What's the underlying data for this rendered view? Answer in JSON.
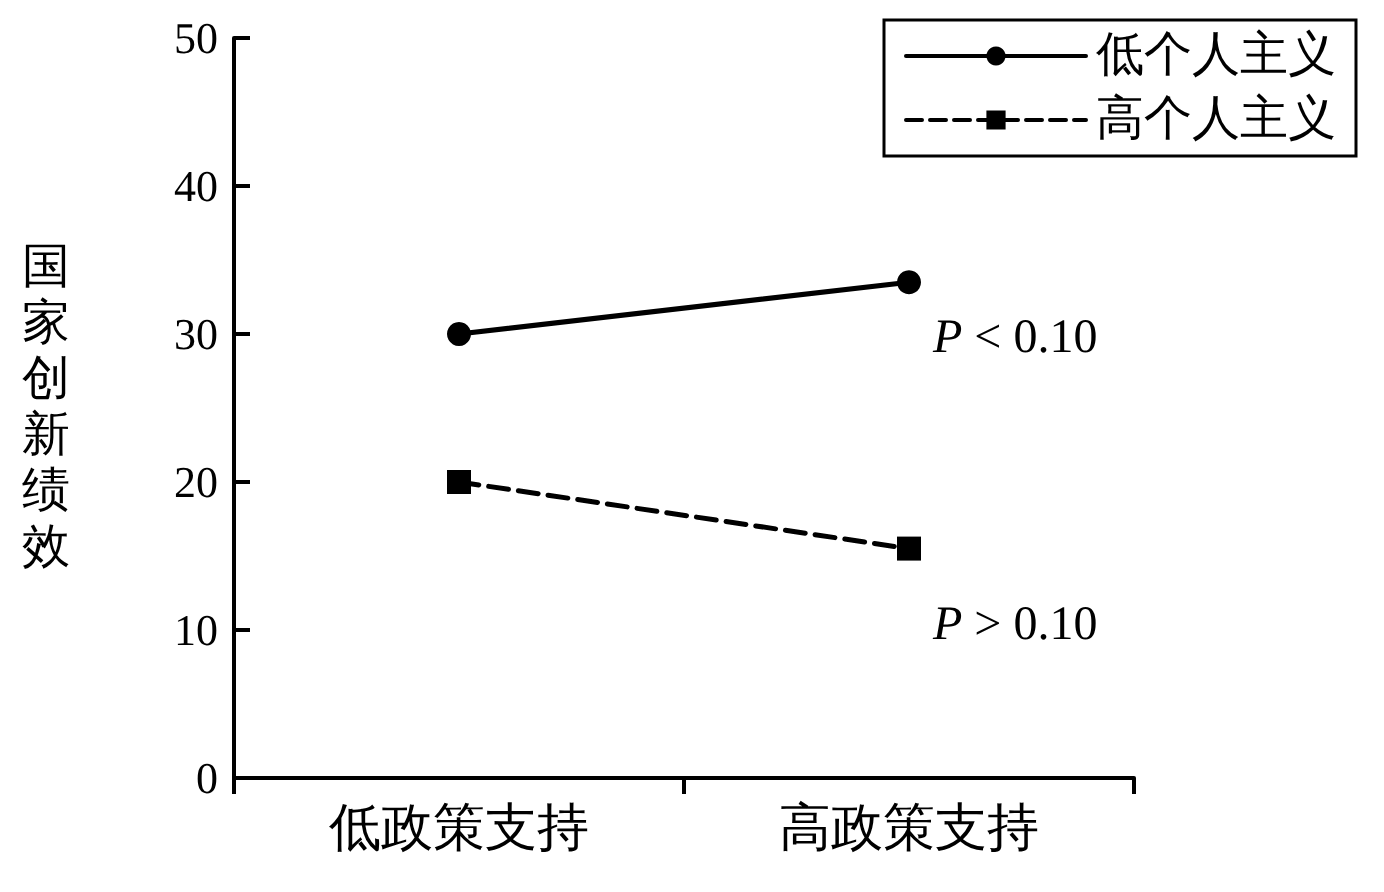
{
  "chart_data": {
    "type": "line",
    "ylabel": "国家创新绩效",
    "categories": [
      "低政策支持",
      "高政策支持"
    ],
    "series": [
      {
        "name": "低个人主义",
        "color": "#000000",
        "values": [
          30,
          33.5
        ],
        "marker": "circle",
        "line_style": "solid"
      },
      {
        "name": "高个人主义",
        "color": "#000000",
        "values": [
          20,
          15.5
        ],
        "marker": "square",
        "line_style": "dashed"
      }
    ],
    "ylim": [
      0,
      50
    ],
    "yticks": [
      0,
      10,
      20,
      30,
      40,
      50
    ],
    "grid": false,
    "legend": "top right",
    "annotations": [
      "P < 0.10",
      "P > 0.10"
    ]
  }
}
